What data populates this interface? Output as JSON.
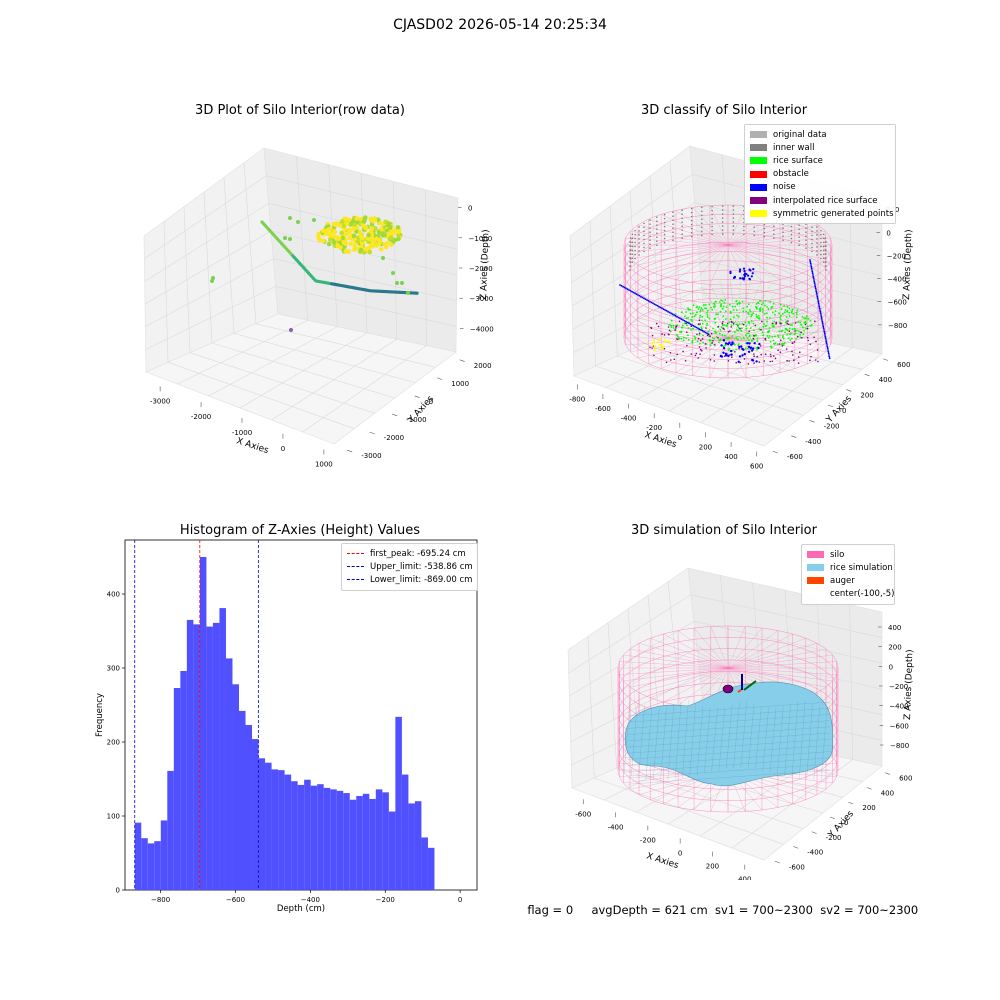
{
  "figure": {
    "suptitle": "CJASD02 2026-05-14 20:25:34",
    "footer": {
      "flag": "flag = 0",
      "avg_depth": "avgDepth = 621 cm",
      "sv1": "sv1 = 700~2300",
      "sv2": "sv2 = 700~2300"
    }
  },
  "colors": {
    "original_data": "#b0b0b0",
    "inner_wall": "#808080",
    "rice_surface": "#00ff00",
    "obstacle": "#ff0000",
    "noise": "#0000ff",
    "interpolated_rice_surface": "#800080",
    "symmetric_generated_points": "#ffff00",
    "silo": "#ff69b4",
    "rice_simulation": "#87ceeb",
    "auger": "#ff4500",
    "histogram_bar": "#4c4cff",
    "first_peak_line": "#ff0000",
    "limit_line": "#0000cc"
  },
  "chart_data": [
    {
      "type": "scatter",
      "panel": "raw",
      "title": "3D Plot of Silo Interior(row data)",
      "xlabel": "X Axies",
      "ylabel": "Y Axies",
      "zlabel": "Z Axies (Depth)",
      "x_ticks": [
        "-3000",
        "-2000",
        "-1000",
        "0",
        "1000"
      ],
      "y_ticks": [
        "-3000",
        "-2000",
        "-1000",
        "0",
        "1000",
        "2000"
      ],
      "z_ticks": [
        "0",
        "−1000",
        "−2000",
        "−3000",
        "−4000"
      ],
      "grid": true,
      "colormap": "viridis"
    },
    {
      "type": "scatter",
      "panel": "classify",
      "title": "3D classify of Silo Interior",
      "xlabel": "X Axies",
      "ylabel": "Y Axies",
      "zlabel": "Z Axies (Depth)",
      "x_ticks": [
        "-800",
        "-600",
        "-400",
        "-200",
        "0",
        "200",
        "400",
        "600"
      ],
      "y_ticks": [
        "-600",
        "-400",
        "-200",
        "0",
        "200",
        "400",
        "600"
      ],
      "z_ticks": [
        "200",
        "0",
        "−200",
        "−400",
        "−600",
        "−800"
      ],
      "grid": true,
      "legend_position": "top-right",
      "legend": [
        {
          "label": "original data",
          "color_key": "original_data"
        },
        {
          "label": "inner wall",
          "color_key": "inner_wall"
        },
        {
          "label": "rice surface",
          "color_key": "rice_surface"
        },
        {
          "label": "obstacle",
          "color_key": "obstacle"
        },
        {
          "label": "noise",
          "color_key": "noise"
        },
        {
          "label": "interpolated rice surface",
          "color_key": "interpolated_rice_surface"
        },
        {
          "label": "symmetric generated points",
          "color_key": "symmetric_generated_points"
        }
      ]
    },
    {
      "type": "bar",
      "panel": "histogram",
      "title": "Histogram of Z-Axies (Height) Values",
      "xlabel": "Depth (cm)",
      "ylabel": "Frequency",
      "xlim": [
        -895,
        45
      ],
      "ylim": [
        0,
        473
      ],
      "x_ticks": [
        -800,
        -600,
        -400,
        -200,
        0
      ],
      "x_tick_labels": [
        "−800",
        "−600",
        "−400",
        "−200",
        "0"
      ],
      "y_ticks": [
        0,
        100,
        200,
        300,
        400
      ],
      "y_tick_labels": [
        "0",
        "100",
        "200",
        "300",
        "400"
      ],
      "bin_start": -869,
      "bin_width": 17.4,
      "values": [
        91,
        70,
        63,
        66,
        94,
        161,
        273,
        296,
        365,
        359,
        450,
        356,
        361,
        381,
        313,
        278,
        242,
        223,
        204,
        178,
        172,
        163,
        162,
        156,
        147,
        142,
        149,
        141,
        143,
        138,
        136,
        134,
        131,
        122,
        127,
        130,
        123,
        136,
        132,
        106,
        234,
        156,
        117,
        120,
        71,
        57
      ],
      "vlines": [
        {
          "x": -695.24,
          "label": "first_peak: -695.24 cm",
          "color_key": "first_peak_line"
        },
        {
          "x": -538.86,
          "label": "Upper_limit: -538.86 cm",
          "color_key": "limit_line"
        },
        {
          "x": -869.0,
          "label": "Lower_limit: -869.00 cm",
          "color_key": "limit_line"
        }
      ],
      "legend_position": "top-right"
    },
    {
      "type": "surface",
      "panel": "simulation",
      "title": "3D simulation of Silo Interior",
      "xlabel": "X Axies",
      "ylabel": "Y Axies",
      "zlabel": "Z Axies (Depth)",
      "x_ticks": [
        "-600",
        "-400",
        "-200",
        "0",
        "200",
        "400"
      ],
      "y_ticks": [
        "-600",
        "-400",
        "-200",
        "0",
        "200",
        "400",
        "600"
      ],
      "z_ticks": [
        "400",
        "200",
        "0",
        "−200",
        "−400",
        "−600",
        "−800"
      ],
      "grid": true,
      "legend_position": "top-right",
      "legend": [
        {
          "label": "silo",
          "color_key": "silo"
        },
        {
          "label": "rice simulation",
          "color_key": "rice_simulation"
        },
        {
          "label": "auger",
          "color_key": "auger"
        },
        {
          "label": "center(-100,-5)",
          "color_key": ""
        }
      ]
    }
  ]
}
